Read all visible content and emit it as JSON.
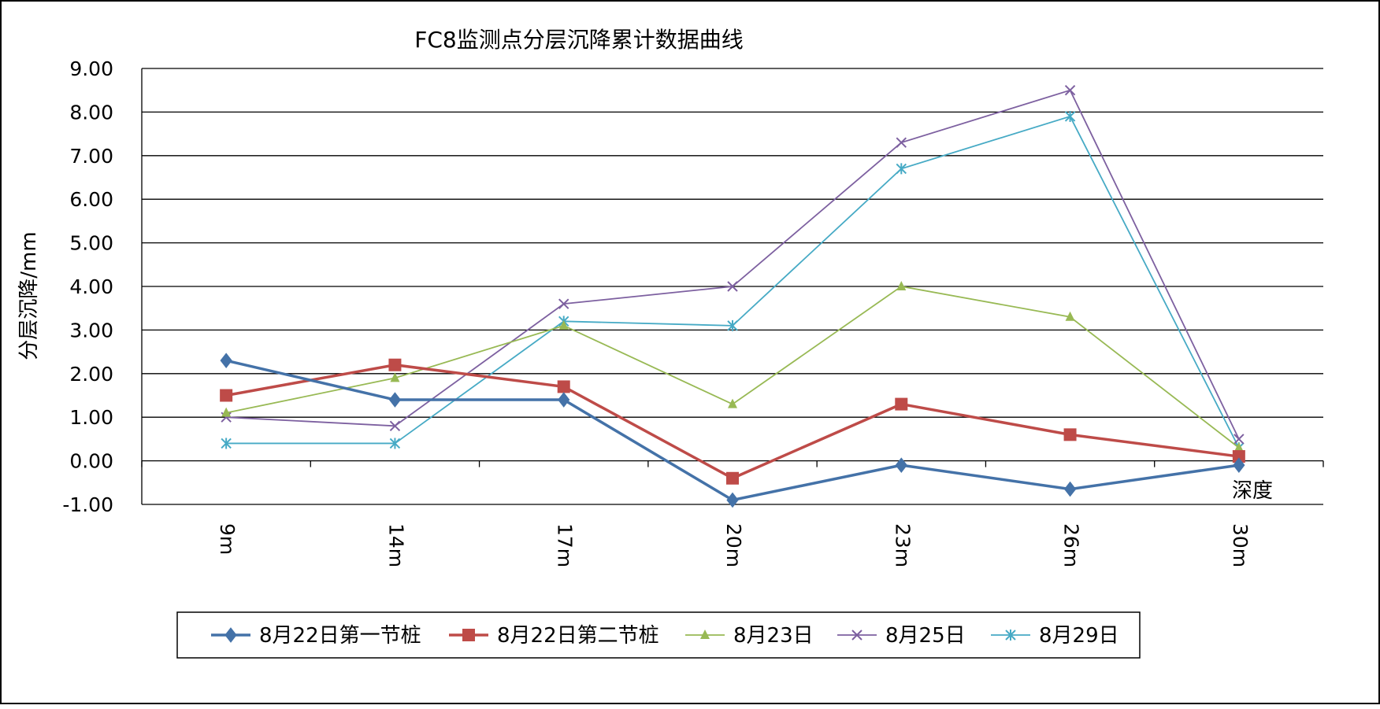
{
  "chart_data": {
    "type": "line",
    "title": "FC8监测点分层沉降累计数据曲线",
    "ylabel": "分层沉降/mm",
    "xlabel": "深度",
    "categories": [
      "9m",
      "14m",
      "17m",
      "20m",
      "23m",
      "26m",
      "30m"
    ],
    "ylim": [
      -1,
      9
    ],
    "yticks": [
      "9.00",
      "8.00",
      "7.00",
      "6.00",
      "5.00",
      "4.00",
      "3.00",
      "2.00",
      "1.00",
      "0.00",
      "-1.00"
    ],
    "grid": true,
    "legend_position": "bottom",
    "series": [
      {
        "name": "8月22日第一节桩",
        "values": [
          2.3,
          1.4,
          1.4,
          -0.9,
          -0.1,
          -0.65,
          -0.1
        ],
        "color": "#4472A8",
        "marker": "diamond"
      },
      {
        "name": "8月22日第二节桩",
        "values": [
          1.5,
          2.2,
          1.7,
          -0.4,
          1.3,
          0.6,
          0.1
        ],
        "color": "#BE4B48",
        "marker": "square"
      },
      {
        "name": "8月23日",
        "values": [
          1.1,
          1.9,
          3.1,
          1.3,
          4.0,
          3.3,
          0.3
        ],
        "color": "#98B954",
        "marker": "triangle"
      },
      {
        "name": "8月25日",
        "values": [
          1.0,
          0.8,
          3.6,
          4.0,
          7.3,
          8.5,
          0.5
        ],
        "color": "#7D60A0",
        "marker": "x"
      },
      {
        "name": "8月29日",
        "values": [
          0.4,
          0.4,
          3.2,
          3.1,
          6.7,
          7.9,
          0.3
        ],
        "color": "#46AAC5",
        "marker": "star"
      }
    ]
  }
}
